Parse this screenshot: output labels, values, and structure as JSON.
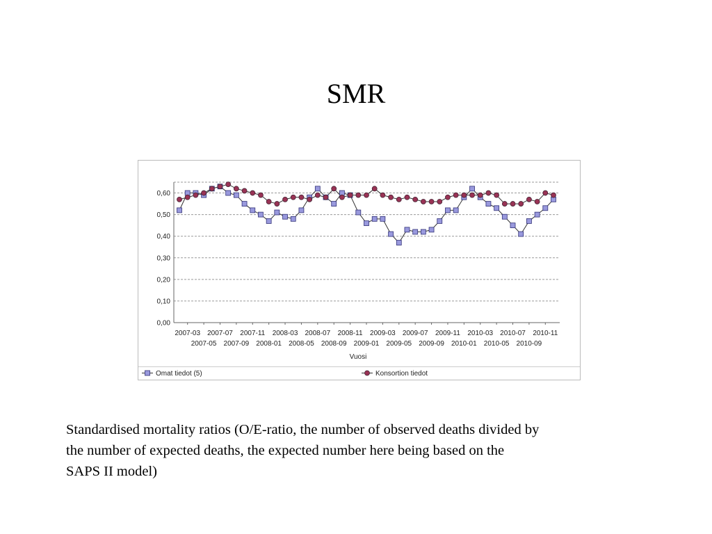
{
  "title": "SMR",
  "caption_lines": [
    "Standardised mortality ratios (O/E-ratio, the number of observed deaths divided by",
    "the number of expected deaths, the expected number here being based on the",
    "SAPS II model)"
  ],
  "chart_data": {
    "type": "line",
    "xlabel": "Vuosi",
    "categories": [
      null,
      "2007-03",
      null,
      "2007-05",
      null,
      "2007-07",
      null,
      "2007-09",
      null,
      "2007-11",
      null,
      "2008-01",
      null,
      "2008-03",
      null,
      "2008-05",
      null,
      "2008-07",
      null,
      "2008-09",
      null,
      "2008-11",
      null,
      "2009-01",
      null,
      "2009-03",
      null,
      "2009-05",
      null,
      "2009-07",
      null,
      "2009-09",
      null,
      "2009-11",
      null,
      "2010-01",
      null,
      "2010-03",
      null,
      "2010-05",
      null,
      "2010-07",
      null,
      "2010-09",
      null,
      "2010-11",
      null
    ],
    "series": [
      {
        "name": "Omat tiedot (5)",
        "color": "#9999dd",
        "marker": "square",
        "values": [
          0.52,
          0.6,
          0.6,
          0.59,
          0.62,
          0.63,
          0.6,
          0.59,
          0.55,
          0.52,
          0.5,
          0.47,
          0.51,
          0.49,
          0.48,
          0.52,
          0.58,
          0.62,
          0.58,
          0.55,
          0.6,
          0.59,
          0.51,
          0.46,
          0.48,
          0.48,
          0.41,
          0.37,
          0.43,
          0.42,
          0.42,
          0.43,
          0.47,
          0.52,
          0.52,
          0.58,
          0.62,
          0.58,
          0.55,
          0.53,
          0.49,
          0.45,
          0.41,
          0.47,
          0.5,
          0.53,
          0.57
        ]
      },
      {
        "name": "Konsortion tiedot",
        "color": "#993355",
        "marker": "circle",
        "values": [
          0.57,
          0.58,
          0.59,
          0.6,
          0.62,
          0.63,
          0.64,
          0.62,
          0.61,
          0.6,
          0.59,
          0.56,
          0.55,
          0.57,
          0.58,
          0.58,
          0.57,
          0.59,
          0.58,
          0.62,
          0.58,
          0.59,
          0.59,
          0.59,
          0.62,
          0.59,
          0.58,
          0.57,
          0.58,
          0.57,
          0.56,
          0.56,
          0.56,
          0.58,
          0.59,
          0.59,
          0.59,
          0.59,
          0.6,
          0.59,
          0.55,
          0.55,
          0.55,
          0.57,
          0.56,
          0.6,
          0.59
        ]
      }
    ],
    "ylim": [
      0,
      0.65
    ],
    "yticks": [
      {
        "value": 0,
        "label": "0,00"
      },
      {
        "value": 0.1,
        "label": "0,10"
      },
      {
        "value": 0.2,
        "label": "0,20"
      },
      {
        "value": 0.3,
        "label": "0,30"
      },
      {
        "value": 0.4,
        "label": "0,40"
      },
      {
        "value": 0.5,
        "label": "0,50"
      },
      {
        "value": 0.6,
        "label": "0,60"
      }
    ],
    "grid": true
  }
}
